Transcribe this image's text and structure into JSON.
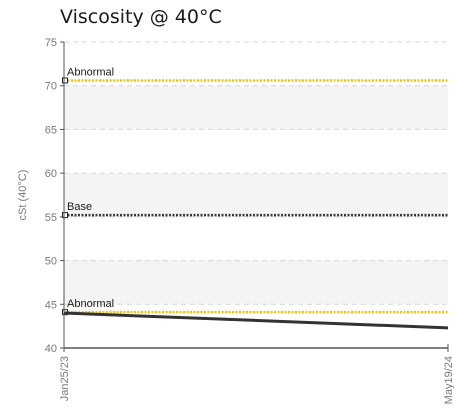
{
  "title": "Viscosity @ 40°C",
  "chart_data": {
    "type": "line",
    "title": "Viscosity @ 40°C",
    "xlabel": "",
    "ylabel": "cSt (40°C)",
    "ylim": [
      40,
      75
    ],
    "yticks": [
      40,
      45,
      50,
      55,
      60,
      65,
      70,
      75
    ],
    "xticks": [
      "Jan25/23",
      "May19/24"
    ],
    "grid": true,
    "reference_lines": [
      {
        "label": "Abnormal",
        "value": 70.6,
        "color": "#f2c400"
      },
      {
        "label": "Base",
        "value": 55.2,
        "color": "#3a3a3a"
      },
      {
        "label": "Abnormal",
        "value": 44.1,
        "color": "#f2c400"
      }
    ],
    "series": [
      {
        "x": [
          "Jan25/23",
          "May19/24"
        ],
        "values": [
          44.0,
          42.3
        ],
        "color": "#333333"
      }
    ]
  }
}
